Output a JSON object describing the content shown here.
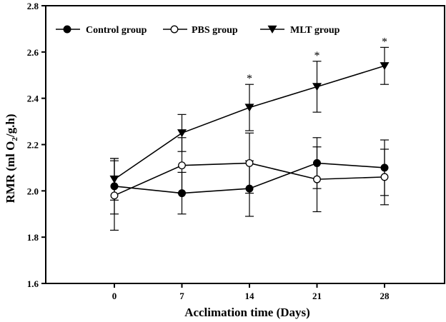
{
  "chart_data": {
    "type": "line",
    "title": "",
    "xlabel": "Acclimation time (Days)",
    "ylabel_main": "RMR (ml O",
    "ylabel_sub": "2",
    "ylabel_tail": "/g.h)",
    "categories": [
      "0",
      "7",
      "14",
      "21",
      "28"
    ],
    "x": [
      0,
      7,
      14,
      21,
      28
    ],
    "ylim": [
      1.6,
      2.8
    ],
    "yticks": [
      "1.6",
      "1.8",
      "2.0",
      "2.2",
      "2.4",
      "2.6",
      "2.8"
    ],
    "grid": false,
    "legend_position": "top",
    "series": [
      {
        "name": "Control group",
        "marker": "filled-circle",
        "values": [
          2.02,
          1.99,
          2.01,
          2.12,
          2.1
        ],
        "errors": [
          0.12,
          0.09,
          0.12,
          0.11,
          0.12
        ]
      },
      {
        "name": "PBS group",
        "marker": "open-circle",
        "values": [
          1.98,
          2.11,
          2.12,
          2.05,
          2.06
        ],
        "errors": [
          0.15,
          0.12,
          0.13,
          0.14,
          0.12
        ]
      },
      {
        "name": "MLT group",
        "marker": "filled-triangle-down",
        "values": [
          2.05,
          2.25,
          2.36,
          2.45,
          2.54
        ],
        "errors": [
          0.09,
          0.08,
          0.1,
          0.11,
          0.08
        ]
      }
    ],
    "significance": [
      "",
      "",
      "*",
      "*",
      "*"
    ]
  }
}
